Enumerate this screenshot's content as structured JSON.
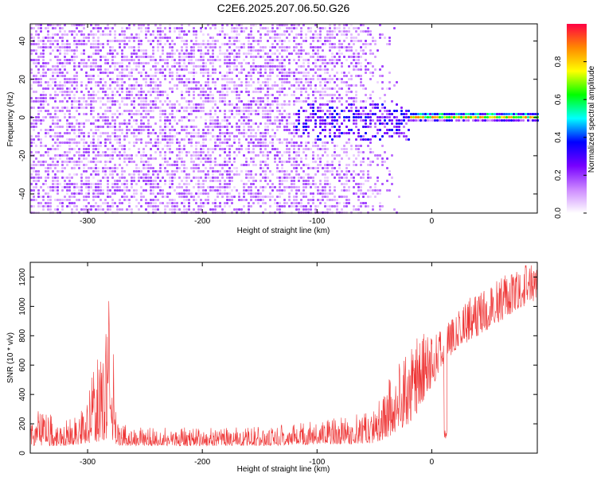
{
  "title": "C2E6.2025.207.06.50.G26",
  "chart_data": [
    {
      "type": "heatmap",
      "xlabel": "Height of straight line (km)",
      "ylabel": "Frequency (Hz)",
      "xlim": [
        -350,
        92
      ],
      "ylim": [
        -50,
        49
      ],
      "x_ticks": [
        -300,
        -200,
        -100,
        0
      ],
      "y_ticks": [
        -40,
        -20,
        0,
        20,
        40
      ],
      "colorbar": {
        "label": "Normalized spectral amplitude",
        "range": [
          0,
          1
        ],
        "ticks": [
          "0.0",
          "0.2",
          "0.4",
          "0.6",
          "0.8"
        ],
        "colors": [
          "#ffffff",
          "#cc88ff",
          "#7700ff",
          "#0000ff",
          "#00ffff",
          "#00ff00",
          "#ffff00",
          "#ff8800",
          "#ff0044"
        ]
      },
      "regions": [
        {
          "name": "noise",
          "x": [
            -350,
            -50
          ],
          "freq": [
            -50,
            49
          ],
          "amplitude": 0.12
        },
        {
          "name": "signal-onset",
          "x": [
            -120,
            -20
          ],
          "freq": [
            -12,
            8
          ],
          "amplitude": 0.3
        },
        {
          "name": "signal-core",
          "x": [
            -20,
            92
          ],
          "freq": [
            -2,
            4
          ],
          "amplitude": 0.9
        }
      ]
    },
    {
      "type": "line",
      "xlabel": "Height of straight line (km)",
      "ylabel": "SNR (10 * v/v)",
      "xlim": [
        -350,
        92
      ],
      "ylim": [
        0,
        1300
      ],
      "x_ticks": [
        -300,
        -200,
        -100,
        0
      ],
      "y_ticks": [
        0,
        200,
        400,
        600,
        800,
        1000,
        1200
      ],
      "color": "#ee3333",
      "envelope": {
        "x": [
          -350,
          -320,
          -305,
          -295,
          -290,
          -285,
          -282,
          -278,
          -275,
          -270,
          -250,
          -200,
          -150,
          -100,
          -70,
          -50,
          -40,
          -30,
          -20,
          -15,
          -10,
          -5,
          0,
          10,
          20,
          30,
          40,
          50,
          60,
          70,
          80,
          92
        ],
        "low": [
          50,
          50,
          60,
          70,
          80,
          90,
          100,
          80,
          60,
          50,
          50,
          50,
          50,
          60,
          60,
          70,
          100,
          150,
          200,
          250,
          300,
          400,
          450,
          600,
          700,
          750,
          800,
          850,
          900,
          950,
          1000,
          1050
        ],
        "high": [
          320,
          230,
          300,
          580,
          700,
          900,
          1070,
          900,
          250,
          200,
          190,
          170,
          180,
          220,
          260,
          320,
          500,
          600,
          700,
          860,
          860,
          800,
          800,
          850,
          950,
          1050,
          1100,
          1150,
          1200,
          1230,
          1280,
          1290
        ]
      },
      "annotations": [
        {
          "name": "dip",
          "x": 12,
          "value": 80
        }
      ]
    }
  ]
}
